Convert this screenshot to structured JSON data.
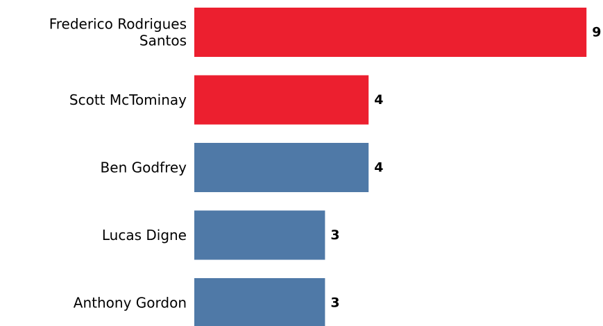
{
  "chart_data": {
    "type": "bar",
    "orientation": "horizontal",
    "categories": [
      [
        "Frederico Rodrigues",
        "Santos"
      ],
      [
        "Scott McTominay"
      ],
      [
        "Ben Godfrey"
      ],
      [
        "Lucas Digne"
      ],
      [
        "Anthony Gordon"
      ]
    ],
    "values": [
      9,
      4,
      4,
      3,
      3
    ],
    "bar_colors": [
      "#EC1F2F",
      "#EC1F2F",
      "#4F79A7",
      "#4F79A7",
      "#4F79A7"
    ],
    "data_labels": [
      "9",
      "4",
      "4",
      "3",
      "3"
    ],
    "xlim": [
      0,
      9
    ],
    "grid": false,
    "axes_visible": false
  }
}
